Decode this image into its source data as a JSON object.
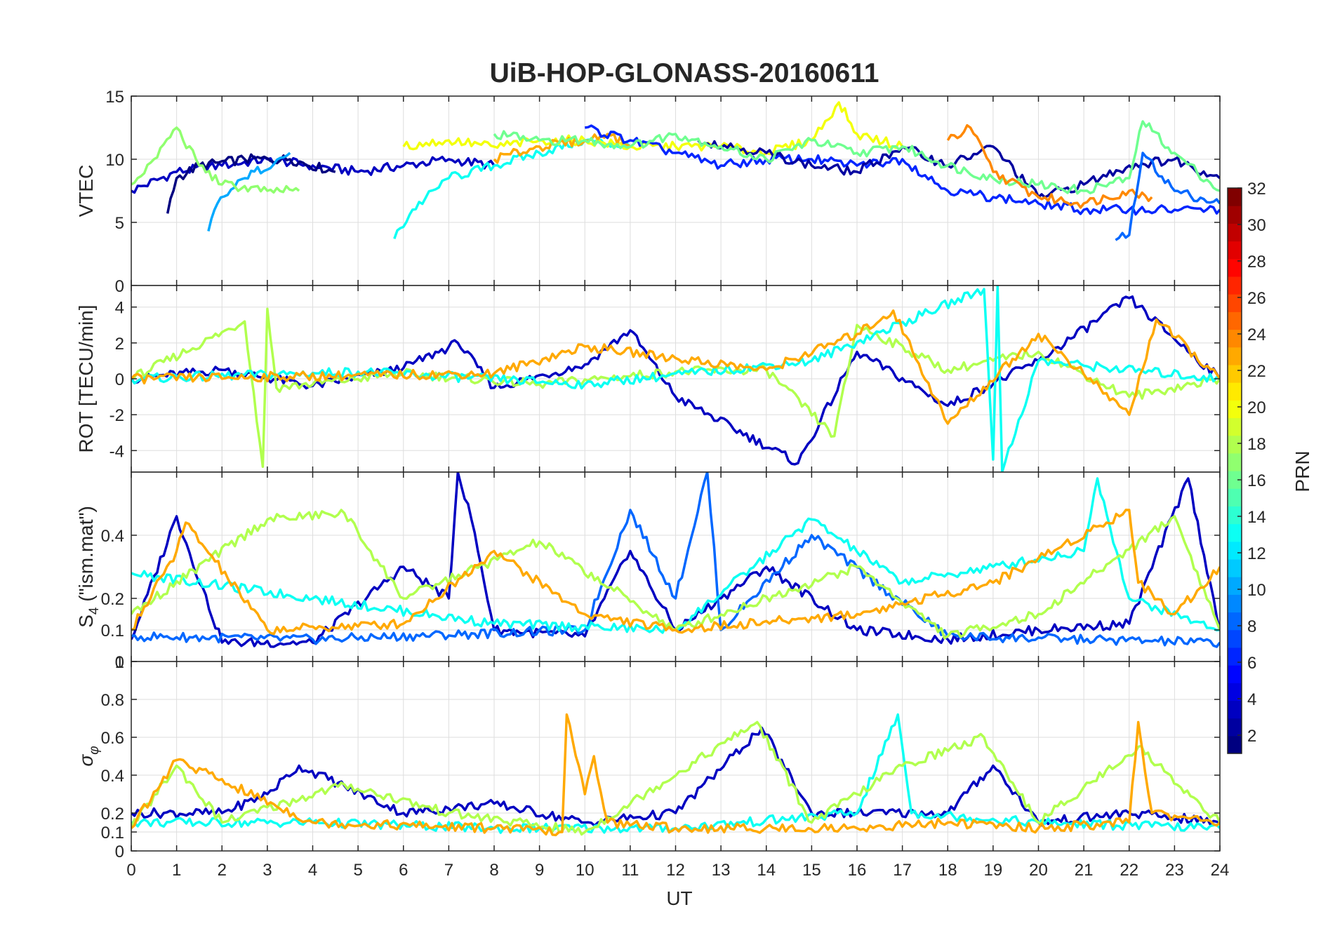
{
  "title": "UiB-HOP-GLONASS-20160611",
  "xlabel": "UT",
  "x_ticks": [
    0,
    1,
    2,
    3,
    4,
    5,
    6,
    7,
    8,
    9,
    10,
    11,
    12,
    13,
    14,
    15,
    16,
    17,
    18,
    19,
    20,
    21,
    22,
    23,
    24
  ],
  "colorbar": {
    "label": "PRN",
    "range": [
      1,
      32
    ],
    "ticks": [
      2,
      4,
      6,
      8,
      10,
      12,
      14,
      16,
      18,
      20,
      22,
      24,
      26,
      28,
      30,
      32
    ],
    "colormap": "jet",
    "levels": 32
  },
  "chart_data": [
    {
      "type": "line",
      "id": "vtec",
      "ylabel": "VTEC",
      "xlim": [
        0,
        24
      ],
      "ylim": [
        0,
        15
      ],
      "y_ticks": [
        "0",
        "5",
        "10",
        "15"
      ],
      "y_tick_values": [
        0,
        5,
        10,
        15
      ],
      "grid": true,
      "series": [
        {
          "prn": 3,
          "x": [
            0.0,
            1.0,
            2.0,
            3.0,
            4.0,
            5.0,
            6.0,
            7.0,
            8.0
          ],
          "y": [
            7.5,
            9.0,
            9.5,
            10.0,
            9.5,
            9.0,
            9.5,
            10.0,
            9.5
          ]
        },
        {
          "prn": 1,
          "x": [
            0.8,
            1.0,
            1.5,
            2.5,
            3.5,
            4.5
          ],
          "y": [
            5.7,
            8.5,
            9.5,
            10.0,
            10.0,
            9.0
          ]
        },
        {
          "prn": 10,
          "x": [
            1.7,
            1.9,
            2.5,
            3.5
          ],
          "y": [
            4.3,
            6.5,
            8.5,
            10.5
          ]
        },
        {
          "prn": 13,
          "x": [
            5.8,
            6.2,
            7.0,
            8.0,
            9.0,
            10.0,
            11.0
          ],
          "y": [
            3.7,
            6.0,
            8.5,
            9.5,
            10.5,
            11.5,
            11.0
          ]
        },
        {
          "prn": 17,
          "x": [
            0.0,
            0.5,
            1.0,
            1.5,
            2.0,
            3.0,
            3.7
          ],
          "y": [
            8.0,
            10.0,
            12.5,
            9.5,
            8.0,
            7.5,
            7.5
          ]
        },
        {
          "prn": 20,
          "x": [
            6.0,
            7.0,
            8.0,
            9.0,
            10.0,
            11.0,
            12.0,
            13.0,
            14.0,
            15.0,
            15.6,
            16.0,
            17.0
          ],
          "y": [
            11.0,
            11.5,
            11.0,
            11.5,
            11.5,
            11.0,
            11.0,
            11.0,
            10.5,
            11.5,
            14.5,
            12.0,
            11.0
          ]
        },
        {
          "prn": 23,
          "x": [
            8.0,
            9.0,
            10.0,
            10.5,
            11.0
          ],
          "y": [
            10.0,
            11.0,
            11.5,
            12.0,
            11.0
          ]
        },
        {
          "prn": 6,
          "x": [
            10.0,
            11.0,
            12.0,
            13.0,
            14.0,
            15.0,
            16.0,
            17.0,
            18.0,
            19.0,
            20.0,
            21.0,
            22.0,
            23.0,
            24.0
          ],
          "y": [
            12.5,
            11.5,
            10.5,
            9.5,
            10.0,
            10.0,
            9.5,
            10.0,
            7.5,
            7.0,
            6.5,
            6.0,
            6.0,
            6.0,
            6.0
          ]
        },
        {
          "prn": 2,
          "x": [
            12.5,
            14.0,
            15.0,
            16.0,
            17.0,
            18.0,
            19.0,
            20.0,
            21.0,
            22.0,
            23.0,
            24.0
          ],
          "y": [
            11.5,
            10.5,
            9.5,
            9.0,
            11.0,
            9.5,
            11.0,
            7.0,
            8.0,
            9.5,
            10.0,
            8.5
          ]
        },
        {
          "prn": 16,
          "x": [
            8.0,
            9.0,
            10.0,
            11.0,
            12.0,
            13.0,
            14.0,
            15.0,
            16.0,
            17.0,
            18.0,
            19.0,
            20.0,
            21.0,
            22.0,
            22.3,
            23.0,
            24.0
          ],
          "y": [
            12.0,
            11.5,
            11.5,
            11.0,
            12.0,
            11.0,
            10.0,
            11.5,
            10.5,
            11.0,
            9.5,
            8.5,
            8.0,
            7.5,
            8.5,
            13.0,
            10.5,
            7.5
          ]
        },
        {
          "prn": 24,
          "x": [
            18.0,
            18.5,
            19.0,
            20.0,
            21.0,
            22.0,
            22.5
          ],
          "y": [
            11.5,
            12.5,
            9.0,
            7.0,
            6.5,
            7.5,
            7.0
          ]
        },
        {
          "prn": 8,
          "x": [
            21.7,
            22.0,
            22.3,
            23.0,
            24.0
          ],
          "y": [
            3.6,
            4.0,
            10.5,
            7.5,
            6.5
          ]
        }
      ]
    },
    {
      "type": "line",
      "id": "rot",
      "ylabel": "ROT [TECU/min]",
      "xlim": [
        0,
        24
      ],
      "ylim": [
        -5.2,
        5.2
      ],
      "y_ticks": [
        "-4",
        "-2",
        "0",
        "2",
        "4"
      ],
      "y_tick_values": [
        -4,
        -2,
        0,
        2,
        4
      ],
      "grid": true,
      "series": [
        {
          "prn": 3,
          "x": [
            0.0,
            2.0,
            4.0,
            6.0,
            7.2,
            8.0,
            10.0,
            11.0,
            12.0,
            14.7,
            16.0,
            18.0,
            20.0,
            22.0,
            24.0
          ],
          "y": [
            0.0,
            0.5,
            -0.4,
            0.6,
            2.0,
            -0.5,
            0.8,
            2.7,
            -1.0,
            -4.7,
            1.5,
            -1.5,
            1.0,
            4.5,
            0.0
          ]
        },
        {
          "prn": 18,
          "x": [
            0.0,
            2.5,
            2.9,
            3.0,
            3.2,
            6.0,
            9.0,
            12.0,
            14.0,
            15.5,
            16.0,
            18.0,
            20.0,
            22.0,
            24.0
          ],
          "y": [
            0.0,
            3.2,
            -4.9,
            3.9,
            -0.5,
            0.3,
            -0.3,
            0.4,
            0.5,
            -3.2,
            3.0,
            0.5,
            1.5,
            -1.0,
            0.0
          ]
        },
        {
          "prn": 13,
          "x": [
            0.0,
            5.0,
            10.0,
            15.0,
            18.8,
            19.0,
            19.1,
            19.2,
            20.0,
            24.0
          ],
          "y": [
            0.0,
            0.4,
            -0.3,
            1.0,
            5.0,
            -4.5,
            5.2,
            -5.2,
            1.0,
            0.0
          ]
        },
        {
          "prn": 23,
          "x": [
            0.0,
            8.0,
            10.0,
            14.0,
            16.0,
            16.8,
            18.0,
            20.0,
            22.0,
            22.6,
            24.0
          ],
          "y": [
            0.0,
            0.3,
            1.8,
            0.5,
            2.5,
            3.8,
            -2.5,
            2.5,
            -2.0,
            3.3,
            0.0
          ]
        }
      ]
    },
    {
      "type": "line",
      "id": "s4",
      "ylabel": "S4 (\"ism.mat\")",
      "xlim": [
        0,
        24
      ],
      "ylim": [
        0,
        0.6
      ],
      "y_ticks": [
        "0",
        "0.1",
        "0.2",
        "0.4"
      ],
      "y_tick_values": [
        0,
        0.1,
        0.2,
        0.4
      ],
      "grid": true,
      "series": [
        {
          "prn": 3,
          "x": [
            0.0,
            1.0,
            2.0,
            4.0,
            6.0,
            7.0,
            7.2,
            7.5,
            8.0,
            10.0,
            11.0,
            12.0,
            13.0,
            14.0,
            16.0,
            18.0,
            20.0,
            22.0,
            23.3,
            24.0
          ],
          "y": [
            0.07,
            0.46,
            0.06,
            0.06,
            0.3,
            0.2,
            0.6,
            0.45,
            0.1,
            0.08,
            0.35,
            0.1,
            0.2,
            0.3,
            0.1,
            0.07,
            0.1,
            0.12,
            0.58,
            0.1
          ]
        },
        {
          "prn": 8,
          "x": [
            0.0,
            4.0,
            10.0,
            11.0,
            12.0,
            12.7,
            13.0,
            15.0,
            18.0,
            24.0
          ],
          "y": [
            0.08,
            0.07,
            0.1,
            0.48,
            0.2,
            0.6,
            0.1,
            0.4,
            0.08,
            0.06
          ]
        },
        {
          "prn": 13,
          "x": [
            0.0,
            4.0,
            8.0,
            12.0,
            15.0,
            17.0,
            19.0,
            21.0,
            21.3,
            22.0,
            24.0
          ],
          "y": [
            0.28,
            0.2,
            0.12,
            0.1,
            0.45,
            0.25,
            0.3,
            0.35,
            0.58,
            0.2,
            0.1
          ]
        },
        {
          "prn": 18,
          "x": [
            0.0,
            3.0,
            4.7,
            6.0,
            9.0,
            12.0,
            16.0,
            18.0,
            20.0,
            23.0,
            24.0
          ],
          "y": [
            0.15,
            0.45,
            0.47,
            0.2,
            0.38,
            0.1,
            0.3,
            0.08,
            0.15,
            0.46,
            0.1
          ]
        },
        {
          "prn": 23,
          "x": [
            0.0,
            1.0,
            1.2,
            3.0,
            6.0,
            8.0,
            10.0,
            12.0,
            16.0,
            19.0,
            22.0,
            22.2,
            23.0,
            24.0
          ],
          "y": [
            0.1,
            0.35,
            0.44,
            0.1,
            0.12,
            0.35,
            0.15,
            0.1,
            0.15,
            0.25,
            0.48,
            0.25,
            0.15,
            0.3
          ]
        }
      ]
    },
    {
      "type": "line",
      "id": "sigma_phi",
      "ylabel": "σφ",
      "xlim": [
        0,
        24
      ],
      "ylim": [
        0,
        1
      ],
      "y_ticks": [
        "0",
        "0.1",
        "0.2",
        "0.4",
        "0.6",
        "0.8",
        "1"
      ],
      "y_tick_values": [
        0,
        0.1,
        0.2,
        0.4,
        0.6,
        0.8,
        1
      ],
      "grid": true,
      "series": [
        {
          "prn": 3,
          "x": [
            0.0,
            2.0,
            3.0,
            3.7,
            6.0,
            8.0,
            10.0,
            12.0,
            13.9,
            15.0,
            18.0,
            19.0,
            20.0,
            22.0,
            24.0
          ],
          "y": [
            0.2,
            0.2,
            0.3,
            0.45,
            0.2,
            0.25,
            0.15,
            0.2,
            0.65,
            0.2,
            0.2,
            0.45,
            0.15,
            0.2,
            0.15
          ]
        },
        {
          "prn": 13,
          "x": [
            0.0,
            4.0,
            8.0,
            12.0,
            16.0,
            16.9,
            17.2,
            20.0,
            24.0
          ],
          "y": [
            0.15,
            0.15,
            0.12,
            0.12,
            0.2,
            0.72,
            0.2,
            0.15,
            0.12
          ]
        },
        {
          "prn": 18,
          "x": [
            0.0,
            1.0,
            2.0,
            4.7,
            7.0,
            10.0,
            13.8,
            15.0,
            17.0,
            18.8,
            20.0,
            22.2,
            24.0
          ],
          "y": [
            0.12,
            0.45,
            0.15,
            0.35,
            0.2,
            0.1,
            0.68,
            0.15,
            0.45,
            0.6,
            0.15,
            0.55,
            0.15
          ]
        },
        {
          "prn": 23,
          "x": [
            0.0,
            1.0,
            4.0,
            8.0,
            9.5,
            9.6,
            10.0,
            10.2,
            10.5,
            12.0,
            16.0,
            18.0,
            20.0,
            22.0,
            22.2,
            22.5,
            24.0
          ],
          "y": [
            0.12,
            0.48,
            0.15,
            0.12,
            0.1,
            0.72,
            0.3,
            0.5,
            0.15,
            0.12,
            0.12,
            0.15,
            0.12,
            0.15,
            0.68,
            0.2,
            0.15
          ]
        }
      ]
    }
  ]
}
